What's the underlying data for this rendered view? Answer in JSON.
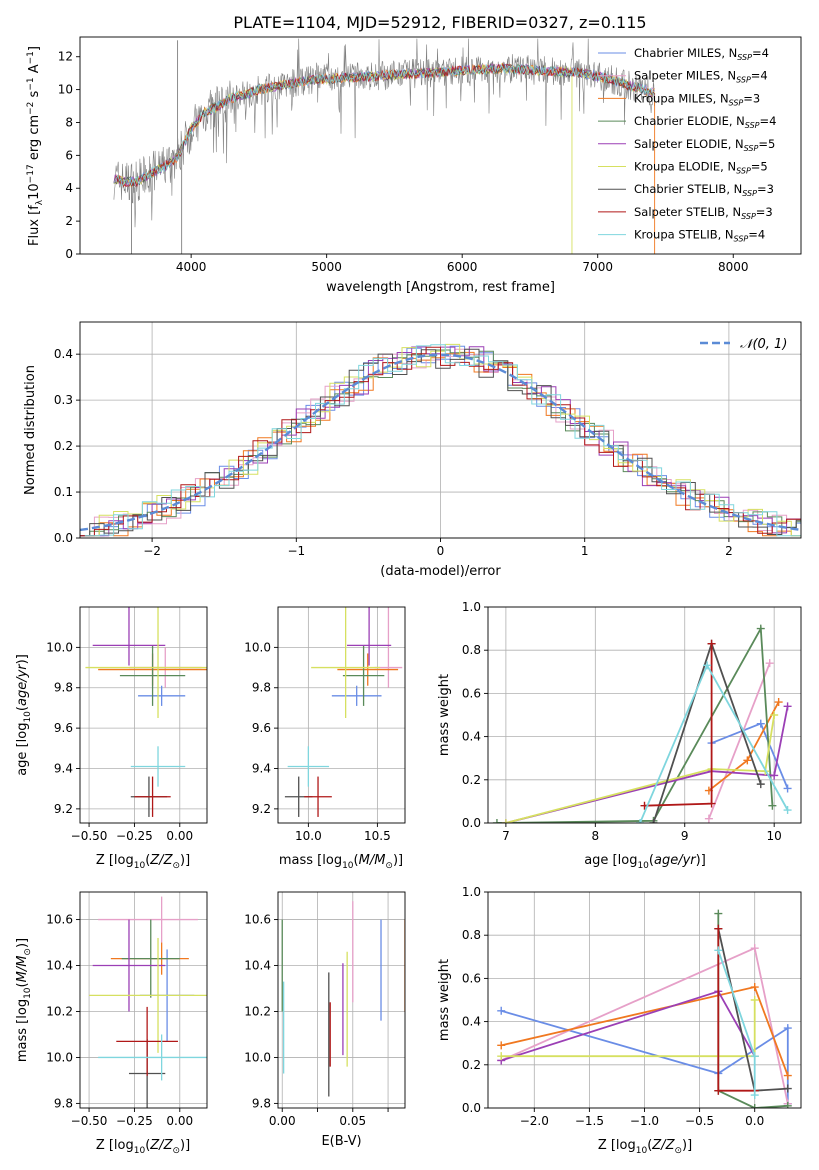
{
  "figure": {
    "title": "PLATE=1104, MJD=52912, FIBERID=0327, z=0.115"
  },
  "colors": {
    "Chabrier MILES": "#6a8de6",
    "Salpeter MILES": "#e6a0c8",
    "Kroupa MILES": "#f07820",
    "Chabrier ELODIE": "#5a8a5a",
    "Salpeter ELODIE": "#9b3fb5",
    "Kroupa ELODIE": "#d6e060",
    "Chabrier STELIB": "#505050",
    "Salpeter STELIB": "#b01818",
    "Kroupa STELIB": "#7fd6de",
    "data": "#808080",
    "gaussian": "#5b8bd6"
  },
  "chart_data": [
    {
      "id": "spectrum",
      "type": "line",
      "xlabel": "wavelength [Angstrom, rest frame]",
      "ylabel": "Flux [f_λ 10^-17 erg cm^-2 s^-1 A^-1]",
      "xlim": [
        3180,
        8500
      ],
      "ylim": [
        0,
        13.2
      ],
      "xticks": [
        4000,
        5000,
        6000,
        7000,
        8000
      ],
      "yticks": [
        0,
        2,
        4,
        6,
        8,
        10,
        12
      ],
      "grid": false,
      "legend_position": "top-right",
      "legend": [
        {
          "label": "Chabrier MILES, N_SSP=4",
          "model": "Chabrier MILES"
        },
        {
          "label": "Salpeter MILES, N_SSP=4",
          "model": "Salpeter MILES"
        },
        {
          "label": "Kroupa MILES, N_SSP=3",
          "model": "Kroupa MILES"
        },
        {
          "label": "Chabrier ELODIE, N_SSP=4",
          "model": "Chabrier ELODIE"
        },
        {
          "label": "Salpeter ELODIE, N_SSP=5",
          "model": "Salpeter ELODIE"
        },
        {
          "label": "Kroupa ELODIE, N_SSP=5",
          "model": "Kroupa ELODIE"
        },
        {
          "label": "Chabrier STELIB, N_SSP=3",
          "model": "Chabrier STELIB"
        },
        {
          "label": "Salpeter STELIB, N_SSP=3",
          "model": "Salpeter STELIB"
        },
        {
          "label": "Kroupa STELIB, N_SSP=4",
          "model": "Kroupa STELIB"
        }
      ],
      "continuum": {
        "x": [
          3430,
          3500,
          3600,
          3700,
          3800,
          3900,
          4000,
          4100,
          4200,
          4300,
          4400,
          4500,
          4700,
          4900,
          5100,
          5300,
          5500,
          5700,
          5900,
          6100,
          6300,
          6500,
          6700,
          6900,
          7100,
          7300,
          7420
        ],
        "y": [
          4.6,
          4.4,
          4.4,
          4.9,
          5.3,
          5.9,
          7.6,
          8.6,
          9.0,
          9.5,
          9.7,
          10.0,
          10.3,
          10.6,
          10.7,
          10.8,
          10.9,
          11.0,
          11.1,
          11.2,
          11.3,
          11.2,
          11.1,
          11.0,
          10.6,
          10.1,
          9.8
        ]
      }
    },
    {
      "id": "residuals",
      "type": "histogram",
      "xlabel": "(data-model)/error",
      "ylabel": "Normed distribution",
      "xlim": [
        -2.5,
        2.5
      ],
      "ylim": [
        0,
        0.47
      ],
      "xticks": [
        -2,
        -1,
        0,
        1,
        2
      ],
      "yticks": [
        0.0,
        0.1,
        0.2,
        0.3,
        0.4
      ],
      "grid": true,
      "legend_position": "top-right",
      "legend": [
        {
          "label": "𝒩(0, 1)"
        }
      ],
      "gaussian": {
        "mean": 0,
        "sigma": 1
      }
    },
    {
      "id": "age-vs-Z",
      "type": "scatter",
      "xlabel": "Z [log10(Z/Z⊙)]",
      "ylabel": "age [log10(age/yr)]",
      "xlim": [
        -0.55,
        0.15
      ],
      "ylim": [
        9.13,
        10.2
      ],
      "xticks": [
        -0.5,
        -0.25,
        0.0
      ],
      "xticklabels": [
        "−0.50",
        "−0.25",
        "0.00"
      ],
      "yticks": [
        9.2,
        9.4,
        9.6,
        9.8,
        10.0
      ],
      "grid": true,
      "points": [
        {
          "model": "Chabrier MILES",
          "x": -0.1,
          "xerr": [
            0.13,
            0.13
          ],
          "y": 9.76,
          "yerr": [
            0.05,
            0.05
          ]
        },
        {
          "model": "Salpeter MILES",
          "x": -0.08,
          "xerr": [
            0.2,
            0.2
          ],
          "y": 9.9,
          "yerr": [
            0.1,
            0.1
          ]
        },
        {
          "model": "Kroupa MILES",
          "x": -0.15,
          "xerr": [
            0.3,
            0.3
          ],
          "y": 9.89,
          "yerr": [
            0.08,
            0.08
          ]
        },
        {
          "model": "Chabrier ELODIE",
          "x": -0.15,
          "xerr": [
            0.18,
            0.18
          ],
          "y": 9.86,
          "yerr": [
            0.15,
            0.15
          ]
        },
        {
          "model": "Salpeter ELODIE",
          "x": -0.28,
          "xerr": [
            0.2,
            0.2
          ],
          "y": 10.01,
          "yerr": [
            0.1,
            0.4
          ]
        },
        {
          "model": "Kroupa ELODIE",
          "x": -0.12,
          "xerr": [
            0.4,
            0.5
          ],
          "y": 9.9,
          "yerr": [
            0.25,
            0.4
          ]
        },
        {
          "model": "Chabrier STELIB",
          "x": -0.17,
          "xerr": [
            0.1,
            0.1
          ],
          "y": 9.26,
          "yerr": [
            0.1,
            0.1
          ]
        },
        {
          "model": "Salpeter STELIB",
          "x": -0.15,
          "xerr": [
            0.1,
            0.1
          ],
          "y": 9.26,
          "yerr": [
            0.1,
            0.1
          ]
        },
        {
          "model": "Kroupa STELIB",
          "x": -0.12,
          "xerr": [
            0.15,
            0.15
          ],
          "y": 9.41,
          "yerr": [
            0.1,
            0.1
          ]
        }
      ]
    },
    {
      "id": "age-vs-mass",
      "type": "scatter",
      "xlabel": "mass [log10(M/M⊙)]",
      "ylabel": "",
      "xlim": [
        9.78,
        10.7
      ],
      "ylim": [
        9.13,
        10.2
      ],
      "xticks": [
        10.0,
        10.5
      ],
      "xticklabels": [
        "10.0",
        "10.5"
      ],
      "yticks": [
        9.2,
        9.4,
        9.6,
        9.8,
        10.0
      ],
      "grid": true,
      "points": [
        {
          "model": "Chabrier MILES",
          "x": 10.35,
          "xerr": [
            0.18,
            0.18
          ],
          "y": 9.76,
          "yerr": [
            0.05,
            0.05
          ]
        },
        {
          "model": "Salpeter MILES",
          "x": 10.58,
          "xerr": [
            0.1,
            0.1
          ],
          "y": 9.9,
          "yerr": [
            0.1,
            0.38
          ]
        },
        {
          "model": "Kroupa MILES",
          "x": 10.43,
          "xerr": [
            0.22,
            0.22
          ],
          "y": 9.89,
          "yerr": [
            0.08,
            0.08
          ]
        },
        {
          "model": "Chabrier ELODIE",
          "x": 10.4,
          "xerr": [
            0.15,
            0.15
          ],
          "y": 9.86,
          "yerr": [
            0.15,
            0.15
          ]
        },
        {
          "model": "Salpeter ELODIE",
          "x": 10.44,
          "xerr": [
            0.16,
            0.16
          ],
          "y": 10.01,
          "yerr": [
            0.1,
            0.4
          ]
        },
        {
          "model": "Kroupa ELODIE",
          "x": 10.27,
          "xerr": [
            0.25,
            0.25
          ],
          "y": 9.9,
          "yerr": [
            0.25,
            0.4
          ]
        },
        {
          "model": "Chabrier STELIB",
          "x": 9.93,
          "xerr": [
            0.1,
            0.1
          ],
          "y": 9.26,
          "yerr": [
            0.1,
            0.1
          ]
        },
        {
          "model": "Salpeter STELIB",
          "x": 10.07,
          "xerr": [
            0.1,
            0.1
          ],
          "y": 9.26,
          "yerr": [
            0.1,
            0.1
          ]
        },
        {
          "model": "Kroupa STELIB",
          "x": 10.0,
          "xerr": [
            0.15,
            0.15
          ],
          "y": 9.41,
          "yerr": [
            0.1,
            0.1
          ]
        }
      ]
    },
    {
      "id": "mass-weight-vs-age",
      "type": "line",
      "xlabel": "age [log10(age/yr)]",
      "ylabel": "mass weight",
      "xlim": [
        6.8,
        10.3
      ],
      "ylim": [
        0,
        1.0
      ],
      "xticks": [
        7,
        8,
        9,
        10
      ],
      "yticks": [
        0.0,
        0.2,
        0.4,
        0.6,
        0.8,
        1.0
      ],
      "grid": true,
      "series": [
        {
          "model": "Chabrier MILES",
          "x": [
            9.3,
            9.85,
            10.15
          ],
          "y": [
            0.37,
            0.46,
            0.16
          ]
        },
        {
          "model": "Salpeter MILES",
          "x": [
            9.27,
            9.95
          ],
          "y": [
            0.02,
            0.74
          ]
        },
        {
          "model": "Kroupa MILES",
          "x": [
            9.27,
            9.7,
            10.05
          ],
          "y": [
            0.15,
            0.29,
            0.56
          ]
        },
        {
          "model": "Chabrier ELODIE",
          "x": [
            6.9,
            8.65,
            9.85,
            9.98
          ],
          "y": [
            0.0,
            0.01,
            0.9,
            0.08
          ]
        },
        {
          "model": "Salpeter ELODIE",
          "x": [
            7.0,
            9.3,
            10.0,
            10.15
          ],
          "y": [
            0.0,
            0.24,
            0.22,
            0.54
          ]
        },
        {
          "model": "Kroupa ELODIE",
          "x": [
            7.0,
            9.3,
            9.9,
            10.0
          ],
          "y": [
            0.0,
            0.25,
            0.24,
            0.5
          ]
        },
        {
          "model": "Chabrier STELIB",
          "x": [
            8.65,
            9.3,
            9.85
          ],
          "y": [
            0.0,
            0.83,
            0.18
          ]
        },
        {
          "model": "Salpeter STELIB",
          "x": [
            8.55,
            9.3,
            9.3
          ],
          "y": [
            0.08,
            0.09,
            0.83
          ]
        },
        {
          "model": "Kroupa STELIB",
          "x": [
            8.5,
            9.25,
            10.15
          ],
          "y": [
            0.0,
            0.73,
            0.06
          ]
        }
      ]
    },
    {
      "id": "mass-vs-Z",
      "type": "scatter",
      "xlabel": "Z [log10(Z/Z⊙)]",
      "ylabel": "mass [log10(M/M⊙)]",
      "xlim": [
        -0.55,
        0.15
      ],
      "ylim": [
        9.78,
        10.72
      ],
      "xticks": [
        -0.5,
        -0.25,
        0.0
      ],
      "xticklabels": [
        "−0.50",
        "−0.25",
        "0.00"
      ],
      "yticks": [
        9.8,
        10.0,
        10.2,
        10.4,
        10.6
      ],
      "grid": true,
      "points": [
        {
          "model": "Chabrier MILES",
          "x": -0.07,
          "xerr": [
            0.15,
            0.15
          ],
          "y": 10.27,
          "yerr": [
            0.2,
            0.2
          ]
        },
        {
          "model": "Salpeter MILES",
          "x": -0.1,
          "xerr": [
            0.35,
            0.2
          ],
          "y": 10.6,
          "yerr": [
            0.1,
            0.1
          ]
        },
        {
          "model": "Kroupa MILES",
          "x": -0.1,
          "xerr": [
            0.28,
            0.15
          ],
          "y": 10.43,
          "yerr": [
            0.07,
            0.07
          ]
        },
        {
          "model": "Chabrier ELODIE",
          "x": -0.16,
          "xerr": [
            0.16,
            0.16
          ],
          "y": 10.43,
          "yerr": [
            0.17,
            0.17
          ]
        },
        {
          "model": "Salpeter ELODIE",
          "x": -0.28,
          "xerr": [
            0.2,
            0.2
          ],
          "y": 10.4,
          "yerr": [
            0.2,
            0.2
          ]
        },
        {
          "model": "Kroupa ELODIE",
          "x": -0.12,
          "xerr": [
            0.38,
            0.38
          ],
          "y": 10.27,
          "yerr": [
            0.25,
            0.25
          ]
        },
        {
          "model": "Chabrier STELIB",
          "x": -0.18,
          "xerr": [
            0.1,
            0.1
          ],
          "y": 9.93,
          "yerr": [
            0.15,
            0.15
          ]
        },
        {
          "model": "Salpeter STELIB",
          "x": -0.18,
          "xerr": [
            0.17,
            0.17
          ],
          "y": 10.07,
          "yerr": [
            0.15,
            0.15
          ]
        },
        {
          "model": "Kroupa STELIB",
          "x": -0.1,
          "xerr": [
            0.35,
            0.35
          ],
          "y": 10.0,
          "yerr": [
            0.1,
            0.1
          ]
        }
      ]
    },
    {
      "id": "mass-vs-EBV",
      "type": "scatter",
      "xlabel": "E(B-V)",
      "ylabel": "",
      "xlim": [
        -0.003,
        0.087
      ],
      "ylim": [
        9.78,
        10.72
      ],
      "xticks": [
        0.0,
        0.025,
        0.05,
        0.075
      ],
      "xticklabels": [
        "0.00",
        "",
        "0.05",
        ""
      ],
      "yticks": [
        9.8,
        10.0,
        10.2,
        10.4,
        10.6
      ],
      "grid": true,
      "points": [
        {
          "model": "Chabrier MILES",
          "x": 0.07,
          "xerr": [
            0,
            0
          ],
          "y": 10.38,
          "yerr": [
            0.22,
            0.22
          ]
        },
        {
          "model": "Salpeter MILES",
          "x": 0.05,
          "xerr": [
            0,
            0
          ],
          "y": 10.46,
          "yerr": [
            0.22,
            0.22
          ]
        },
        {
          "model": "Kroupa MILES",
          "x": 0.087,
          "xerr": [
            0,
            0
          ],
          "y": 10.4,
          "yerr": [
            0.2,
            0.2
          ]
        },
        {
          "model": "Chabrier ELODIE",
          "x": 0.0,
          "xerr": [
            0,
            0
          ],
          "y": 10.4,
          "yerr": [
            0.2,
            0.2
          ]
        },
        {
          "model": "Salpeter ELODIE",
          "x": 0.043,
          "xerr": [
            0,
            0
          ],
          "y": 10.21,
          "yerr": [
            0.2,
            0.2
          ]
        },
        {
          "model": "Kroupa ELODIE",
          "x": 0.046,
          "xerr": [
            0,
            0
          ],
          "y": 10.21,
          "yerr": [
            0.25,
            0.25
          ]
        },
        {
          "model": "Chabrier STELIB",
          "x": 0.033,
          "xerr": [
            0,
            0
          ],
          "y": 10.1,
          "yerr": [
            0.27,
            0.27
          ]
        },
        {
          "model": "Salpeter STELIB",
          "x": 0.034,
          "xerr": [
            0,
            0
          ],
          "y": 10.1,
          "yerr": [
            0.14,
            0.14
          ]
        },
        {
          "model": "Kroupa STELIB",
          "x": 0.001,
          "xerr": [
            0,
            0
          ],
          "y": 10.13,
          "yerr": [
            0.2,
            0.2
          ]
        }
      ]
    },
    {
      "id": "mass-weight-vs-Z",
      "type": "line",
      "xlabel": "Z [log10(Z/Z⊙)]",
      "ylabel": "mass weight",
      "xlim": [
        -2.42,
        0.42
      ],
      "ylim": [
        0,
        1.0
      ],
      "xticks": [
        -2.0,
        -1.5,
        -1.0,
        -0.5,
        0.0
      ],
      "xticklabels": [
        "−2.0",
        "−1.5",
        "−1.0",
        "−0.5",
        "0.0"
      ],
      "yticks": [
        0.0,
        0.2,
        0.4,
        0.6,
        0.8,
        1.0
      ],
      "grid": true,
      "series": [
        {
          "model": "Chabrier MILES",
          "x": [
            -2.3,
            -0.33,
            0.3,
            0.3
          ],
          "y": [
            0.45,
            0.16,
            0.37,
            0.02
          ]
        },
        {
          "model": "Salpeter MILES",
          "x": [
            -2.3,
            0.0,
            0.3
          ],
          "y": [
            0.22,
            0.74,
            0.02
          ]
        },
        {
          "model": "Kroupa MILES",
          "x": [
            -2.3,
            0.0,
            0.3
          ],
          "y": [
            0.29,
            0.56,
            0.15
          ]
        },
        {
          "model": "Chabrier ELODIE",
          "x": [
            -0.33,
            -0.33,
            0.0,
            0.3
          ],
          "y": [
            0.9,
            0.08,
            0.0,
            0.01
          ]
        },
        {
          "model": "Salpeter ELODIE",
          "x": [
            -2.3,
            -0.33,
            0.0
          ],
          "y": [
            0.22,
            0.54,
            0.24
          ]
        },
        {
          "model": "Kroupa ELODIE",
          "x": [
            -2.3,
            0.0,
            0.0
          ],
          "y": [
            0.24,
            0.24,
            0.5
          ]
        },
        {
          "model": "Chabrier STELIB",
          "x": [
            -0.33,
            0.0,
            0.3
          ],
          "y": [
            0.83,
            0.08,
            0.09
          ]
        },
        {
          "model": "Salpeter STELIB",
          "x": [
            -0.33,
            -0.33,
            0.0
          ],
          "y": [
            0.83,
            0.08,
            0.08
          ]
        },
        {
          "model": "Kroupa STELIB",
          "x": [
            -0.33,
            0.0,
            0.0
          ],
          "y": [
            0.73,
            0.24,
            0.06
          ]
        }
      ]
    }
  ]
}
